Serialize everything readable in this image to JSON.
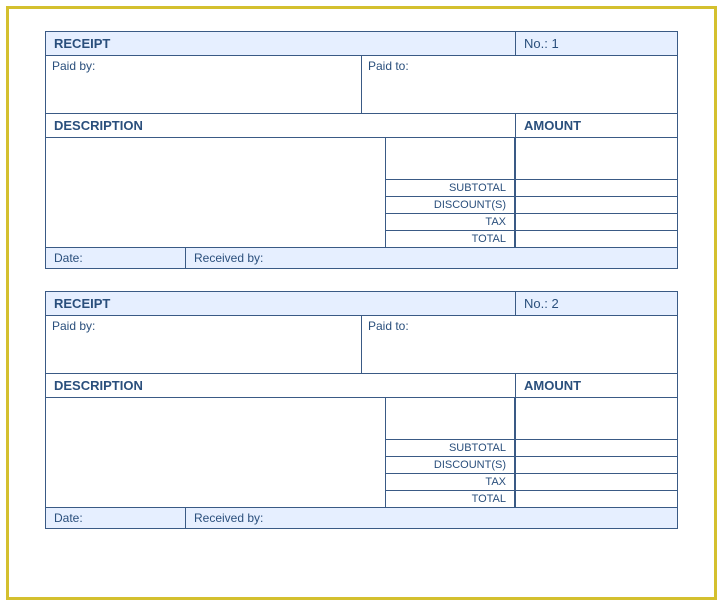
{
  "colors": {
    "frame_border": "#d4c02e",
    "cell_border": "#3a5a85",
    "header_bg": "#e6efff",
    "text_primary": "#2a4f7c",
    "page_bg": "#ffffff"
  },
  "receipts": [
    {
      "title": "RECEIPT",
      "no_label": "No.:",
      "no_value": "1",
      "paid_by_label": "Paid by:",
      "paid_to_label": "Paid to:",
      "description_header": "DESCRIPTION",
      "amount_header": "AMOUNT",
      "subtotal_label": "SUBTOTAL",
      "discount_label": "DISCOUNT(S)",
      "tax_label": "TAX",
      "total_label": "TOTAL",
      "date_label": "Date:",
      "received_by_label": "Received by:"
    },
    {
      "title": "RECEIPT",
      "no_label": "No.:",
      "no_value": "2",
      "paid_by_label": "Paid by:",
      "paid_to_label": "Paid to:",
      "description_header": "DESCRIPTION",
      "amount_header": "AMOUNT",
      "subtotal_label": "SUBTOTAL",
      "discount_label": "DISCOUNT(S)",
      "tax_label": "TAX",
      "total_label": "TOTAL",
      "date_label": "Date:",
      "received_by_label": "Received by:"
    }
  ]
}
